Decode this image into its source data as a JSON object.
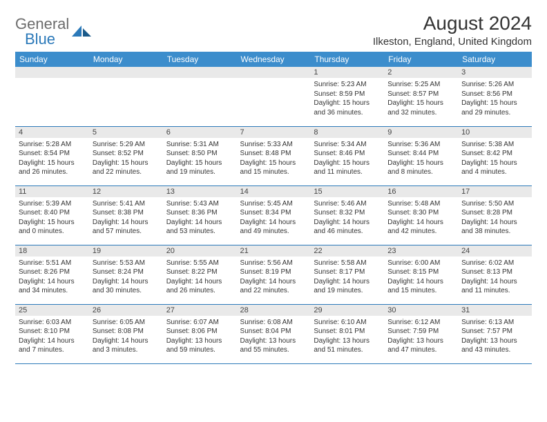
{
  "brand": {
    "part1": "General",
    "part2": "Blue"
  },
  "title": "August 2024",
  "location": "Ilkeston, England, United Kingdom",
  "colors": {
    "header_bg": "#3c8dcc",
    "header_text": "#ffffff",
    "daynum_bg": "#e9e9e9",
    "border": "#2b79b9",
    "logo_gray": "#6b6b6b",
    "logo_blue": "#2b79b9",
    "body_text": "#333333",
    "page_bg": "#ffffff"
  },
  "fonts": {
    "title_size": 28,
    "location_size": 15,
    "header_size": 12,
    "daynum_size": 11,
    "body_size": 10
  },
  "day_headers": [
    "Sunday",
    "Monday",
    "Tuesday",
    "Wednesday",
    "Thursday",
    "Friday",
    "Saturday"
  ],
  "weeks": [
    [
      null,
      null,
      null,
      null,
      {
        "n": "1",
        "sr": "5:23 AM",
        "ss": "8:59 PM",
        "dl": "15 hours and 36 minutes."
      },
      {
        "n": "2",
        "sr": "5:25 AM",
        "ss": "8:57 PM",
        "dl": "15 hours and 32 minutes."
      },
      {
        "n": "3",
        "sr": "5:26 AM",
        "ss": "8:56 PM",
        "dl": "15 hours and 29 minutes."
      }
    ],
    [
      {
        "n": "4",
        "sr": "5:28 AM",
        "ss": "8:54 PM",
        "dl": "15 hours and 26 minutes."
      },
      {
        "n": "5",
        "sr": "5:29 AM",
        "ss": "8:52 PM",
        "dl": "15 hours and 22 minutes."
      },
      {
        "n": "6",
        "sr": "5:31 AM",
        "ss": "8:50 PM",
        "dl": "15 hours and 19 minutes."
      },
      {
        "n": "7",
        "sr": "5:33 AM",
        "ss": "8:48 PM",
        "dl": "15 hours and 15 minutes."
      },
      {
        "n": "8",
        "sr": "5:34 AM",
        "ss": "8:46 PM",
        "dl": "15 hours and 11 minutes."
      },
      {
        "n": "9",
        "sr": "5:36 AM",
        "ss": "8:44 PM",
        "dl": "15 hours and 8 minutes."
      },
      {
        "n": "10",
        "sr": "5:38 AM",
        "ss": "8:42 PM",
        "dl": "15 hours and 4 minutes."
      }
    ],
    [
      {
        "n": "11",
        "sr": "5:39 AM",
        "ss": "8:40 PM",
        "dl": "15 hours and 0 minutes."
      },
      {
        "n": "12",
        "sr": "5:41 AM",
        "ss": "8:38 PM",
        "dl": "14 hours and 57 minutes."
      },
      {
        "n": "13",
        "sr": "5:43 AM",
        "ss": "8:36 PM",
        "dl": "14 hours and 53 minutes."
      },
      {
        "n": "14",
        "sr": "5:45 AM",
        "ss": "8:34 PM",
        "dl": "14 hours and 49 minutes."
      },
      {
        "n": "15",
        "sr": "5:46 AM",
        "ss": "8:32 PM",
        "dl": "14 hours and 46 minutes."
      },
      {
        "n": "16",
        "sr": "5:48 AM",
        "ss": "8:30 PM",
        "dl": "14 hours and 42 minutes."
      },
      {
        "n": "17",
        "sr": "5:50 AM",
        "ss": "8:28 PM",
        "dl": "14 hours and 38 minutes."
      }
    ],
    [
      {
        "n": "18",
        "sr": "5:51 AM",
        "ss": "8:26 PM",
        "dl": "14 hours and 34 minutes."
      },
      {
        "n": "19",
        "sr": "5:53 AM",
        "ss": "8:24 PM",
        "dl": "14 hours and 30 minutes."
      },
      {
        "n": "20",
        "sr": "5:55 AM",
        "ss": "8:22 PM",
        "dl": "14 hours and 26 minutes."
      },
      {
        "n": "21",
        "sr": "5:56 AM",
        "ss": "8:19 PM",
        "dl": "14 hours and 22 minutes."
      },
      {
        "n": "22",
        "sr": "5:58 AM",
        "ss": "8:17 PM",
        "dl": "14 hours and 19 minutes."
      },
      {
        "n": "23",
        "sr": "6:00 AM",
        "ss": "8:15 PM",
        "dl": "14 hours and 15 minutes."
      },
      {
        "n": "24",
        "sr": "6:02 AM",
        "ss": "8:13 PM",
        "dl": "14 hours and 11 minutes."
      }
    ],
    [
      {
        "n": "25",
        "sr": "6:03 AM",
        "ss": "8:10 PM",
        "dl": "14 hours and 7 minutes."
      },
      {
        "n": "26",
        "sr": "6:05 AM",
        "ss": "8:08 PM",
        "dl": "14 hours and 3 minutes."
      },
      {
        "n": "27",
        "sr": "6:07 AM",
        "ss": "8:06 PM",
        "dl": "13 hours and 59 minutes."
      },
      {
        "n": "28",
        "sr": "6:08 AM",
        "ss": "8:04 PM",
        "dl": "13 hours and 55 minutes."
      },
      {
        "n": "29",
        "sr": "6:10 AM",
        "ss": "8:01 PM",
        "dl": "13 hours and 51 minutes."
      },
      {
        "n": "30",
        "sr": "6:12 AM",
        "ss": "7:59 PM",
        "dl": "13 hours and 47 minutes."
      },
      {
        "n": "31",
        "sr": "6:13 AM",
        "ss": "7:57 PM",
        "dl": "13 hours and 43 minutes."
      }
    ]
  ],
  "labels": {
    "sunrise": "Sunrise:",
    "sunset": "Sunset:",
    "daylight": "Daylight:"
  }
}
